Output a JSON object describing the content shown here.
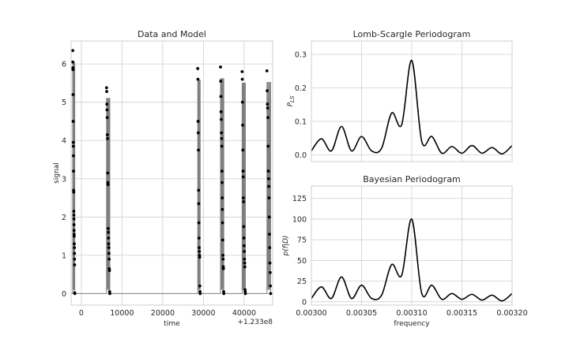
{
  "chart_data": [
    {
      "type": "scatter",
      "title": "Data and Model",
      "xlabel": "time",
      "ylabel": "signal",
      "x_offset_label": "+1.233e8",
      "xlim": [
        -2500,
        47000
      ],
      "ylim": [
        -0.3,
        6.6
      ],
      "x_ticks": [
        0,
        10000,
        20000,
        30000,
        40000
      ],
      "x_tick_labels": [
        "0",
        "10000",
        "20000",
        "30000",
        "40000"
      ],
      "y_ticks": [
        0,
        1,
        2,
        3,
        4,
        5,
        6
      ],
      "y_tick_labels": [
        "0",
        "1",
        "2",
        "3",
        "4",
        "5",
        "6"
      ],
      "grid": true,
      "clusters": [
        {
          "x_start": -2100,
          "x_end": -1600,
          "values": [
            6.35,
            6.05,
            5.9,
            5.85,
            5.2,
            4.5,
            3.95,
            3.85,
            3.6,
            3.2,
            2.7,
            2.65,
            2.15,
            2.05,
            1.95,
            1.8,
            1.65,
            1.55,
            1.5,
            1.3,
            1.2,
            1.05,
            0.9,
            0.75,
            0.02,
            0.0
          ]
        },
        {
          "x_start": 6200,
          "x_end": 7000,
          "values": [
            5.38,
            5.28,
            4.95,
            4.8,
            4.6,
            4.15,
            4.05,
            3.15,
            2.9,
            2.85,
            1.7,
            1.6,
            1.45,
            1.3,
            1.2,
            1.05,
            0.9,
            0.65,
            0.6,
            0.05,
            0.0
          ]
        },
        {
          "x_start": 28600,
          "x_end": 29200,
          "values": [
            5.88,
            5.6,
            4.5,
            4.2,
            3.75,
            2.7,
            2.35,
            1.85,
            1.45,
            1.2,
            1.1,
            1.0,
            0.95,
            0.2,
            0.05,
            0.0
          ]
        },
        {
          "x_start": 34200,
          "x_end": 35000,
          "values": [
            5.92,
            5.55,
            5.15,
            4.75,
            4.55,
            4.2,
            4.05,
            3.85,
            3.2,
            2.9,
            2.5,
            2.2,
            1.85,
            1.4,
            1.0,
            0.9,
            0.7,
            0.65,
            0.05,
            0.0
          ]
        },
        {
          "x_start": 39500,
          "x_end": 40300,
          "values": [
            5.8,
            5.6,
            5.0,
            4.4,
            3.75,
            3.2,
            3.05,
            2.5,
            2.4,
            1.75,
            1.45,
            1.25,
            1.1,
            0.9,
            0.8,
            0.7,
            0.1,
            0.05,
            0.0
          ]
        },
        {
          "x_start": 45600,
          "x_end": 46500,
          "values": [
            5.82,
            5.3,
            4.95,
            4.85,
            4.6,
            3.85,
            3.2,
            3.0,
            2.8,
            2.5,
            2.0,
            1.55,
            1.2,
            0.8,
            0.55,
            0.2,
            0.0
          ]
        }
      ]
    },
    {
      "type": "line",
      "title": "Lomb-Scargle Periodogram",
      "xlabel": "",
      "ylabel": "P_LS",
      "ylabel_display": "P",
      "ylabel_sub": "LS",
      "xlim": [
        0.003,
        0.0032
      ],
      "ylim": [
        -0.02,
        0.34
      ],
      "y_ticks": [
        0.0,
        0.1,
        0.2,
        0.3
      ],
      "y_tick_labels": [
        "0.0",
        "0.1",
        "0.2",
        "0.3"
      ],
      "grid": true,
      "x": [
        0.003,
        0.00301,
        0.00302,
        0.00303,
        0.00304,
        0.00305,
        0.00306,
        0.00307,
        0.00308,
        0.00309,
        0.0031,
        0.00311,
        0.00312,
        0.00313,
        0.00314,
        0.00315,
        0.00316,
        0.00317,
        0.00318,
        0.00319,
        0.0032
      ],
      "values": [
        0.012,
        0.048,
        0.012,
        0.085,
        0.012,
        0.055,
        0.012,
        0.02,
        0.125,
        0.09,
        0.282,
        0.04,
        0.055,
        0.005,
        0.025,
        0.005,
        0.028,
        0.005,
        0.022,
        0.003,
        0.028
      ]
    },
    {
      "type": "line",
      "title": "Bayesian Periodogram",
      "xlabel": "frequency",
      "ylabel": "p(f|D)",
      "xlim": [
        0.003,
        0.0032
      ],
      "ylim": [
        -4,
        140
      ],
      "x_ticks": [
        0.003,
        0.00305,
        0.0031,
        0.00315,
        0.0032
      ],
      "x_tick_labels": [
        "0.00300",
        "0.00305",
        "0.00310",
        "0.00315",
        "0.00320"
      ],
      "y_ticks": [
        0,
        25,
        50,
        75,
        100,
        125
      ],
      "y_tick_labels": [
        "0",
        "25",
        "50",
        "75",
        "100",
        "125"
      ],
      "grid": true,
      "x": [
        0.003,
        0.00301,
        0.00302,
        0.00303,
        0.00304,
        0.00305,
        0.00306,
        0.00307,
        0.00308,
        0.00309,
        0.0031,
        0.00311,
        0.00312,
        0.00313,
        0.00314,
        0.00315,
        0.00316,
        0.00317,
        0.00318,
        0.00319,
        0.0032
      ],
      "values": [
        4,
        18,
        4,
        30,
        4,
        20,
        4,
        8,
        45,
        32,
        100,
        10,
        20,
        3,
        10,
        3,
        9,
        2,
        8,
        1,
        10
      ]
    }
  ]
}
